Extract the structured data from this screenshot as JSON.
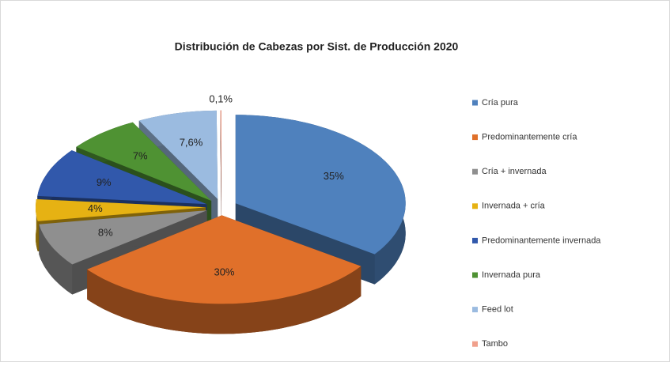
{
  "chart_data": {
    "type": "pie3d",
    "title": "Distribución de Cabezas por Sist. de Producción 2020",
    "categories": [
      "Cría pura",
      "Predominantemente cría",
      "Cría + invernada",
      "Invernada + cría",
      "Predominantemente invernada",
      "Invernada pura",
      "Feed lot",
      "Tambo"
    ],
    "values": [
      35,
      30,
      8,
      4,
      9,
      7,
      7.6,
      0.1
    ],
    "value_labels": [
      "35%",
      "30%",
      "8%",
      "4%",
      "9%",
      "7%",
      "7,6%",
      "0,1%"
    ],
    "colors": [
      "#4f81bd",
      "#e0702a",
      "#8f8f8f",
      "#e6b213",
      "#3158ab",
      "#4f9233",
      "#9bbbe0",
      "#f0a08c"
    ],
    "legend": "right"
  }
}
